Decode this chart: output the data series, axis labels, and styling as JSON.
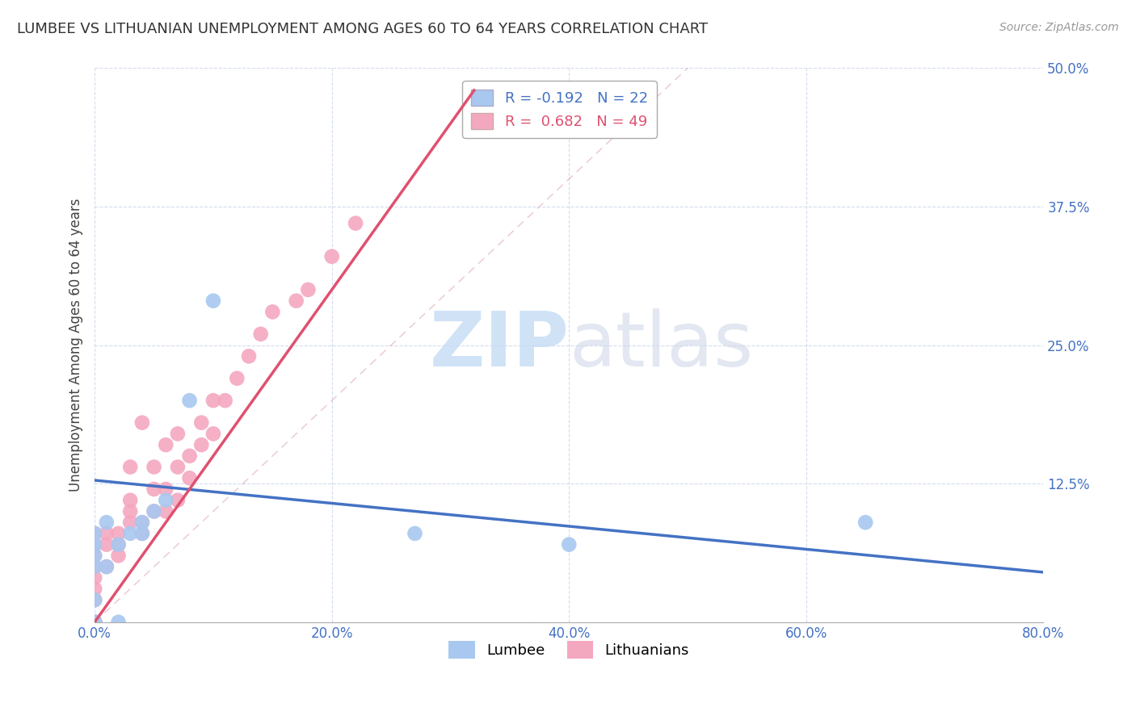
{
  "title": "LUMBEE VS LITHUANIAN UNEMPLOYMENT AMONG AGES 60 TO 64 YEARS CORRELATION CHART",
  "source": "Source: ZipAtlas.com",
  "ylabel": "Unemployment Among Ages 60 to 64 years",
  "xlim": [
    0.0,
    0.8
  ],
  "ylim": [
    0.0,
    0.5
  ],
  "xticks": [
    0.0,
    0.2,
    0.4,
    0.6,
    0.8
  ],
  "xtick_labels": [
    "0.0%",
    "20.0%",
    "40.0%",
    "60.0%",
    "80.0%"
  ],
  "yticks": [
    0.0,
    0.125,
    0.25,
    0.375,
    0.5
  ],
  "ytick_labels": [
    "",
    "12.5%",
    "25.0%",
    "37.5%",
    "50.0%"
  ],
  "lumbee_R": -0.192,
  "lumbee_N": 22,
  "lithuanian_R": 0.682,
  "lithuanian_N": 49,
  "lumbee_color": "#a8c8f0",
  "lithuanian_color": "#f4a8c0",
  "lumbee_line_color": "#4472c4",
  "lithuanian_line_color": "#e05070",
  "watermark_zip": "ZIP",
  "watermark_atlas": "atlas",
  "background_color": "#ffffff",
  "lumbee_scatter_x": [
    0.0,
    0.0,
    0.0,
    0.0,
    0.0,
    0.0,
    0.0,
    0.0,
    0.01,
    0.01,
    0.02,
    0.02,
    0.03,
    0.04,
    0.04,
    0.05,
    0.06,
    0.08,
    0.1,
    0.27,
    0.4,
    0.65
  ],
  "lumbee_scatter_y": [
    0.0,
    0.0,
    0.0,
    0.02,
    0.05,
    0.06,
    0.07,
    0.08,
    0.05,
    0.09,
    0.0,
    0.07,
    0.08,
    0.08,
    0.09,
    0.1,
    0.11,
    0.2,
    0.29,
    0.08,
    0.07,
    0.09
  ],
  "lithuanian_scatter_x": [
    0.0,
    0.0,
    0.0,
    0.0,
    0.0,
    0.0,
    0.0,
    0.0,
    0.0,
    0.0,
    0.0,
    0.01,
    0.01,
    0.01,
    0.02,
    0.02,
    0.02,
    0.03,
    0.03,
    0.03,
    0.03,
    0.04,
    0.04,
    0.04,
    0.05,
    0.05,
    0.05,
    0.06,
    0.06,
    0.06,
    0.07,
    0.07,
    0.07,
    0.08,
    0.08,
    0.09,
    0.09,
    0.1,
    0.1,
    0.11,
    0.12,
    0.13,
    0.14,
    0.15,
    0.17,
    0.18,
    0.2,
    0.22,
    0.32
  ],
  "lithuanian_scatter_y": [
    0.0,
    0.0,
    0.0,
    0.0,
    0.02,
    0.03,
    0.04,
    0.05,
    0.06,
    0.07,
    0.08,
    0.05,
    0.07,
    0.08,
    0.06,
    0.07,
    0.08,
    0.09,
    0.1,
    0.11,
    0.14,
    0.08,
    0.09,
    0.18,
    0.1,
    0.12,
    0.14,
    0.1,
    0.12,
    0.16,
    0.11,
    0.14,
    0.17,
    0.13,
    0.15,
    0.16,
    0.18,
    0.17,
    0.2,
    0.2,
    0.22,
    0.24,
    0.26,
    0.28,
    0.29,
    0.3,
    0.33,
    0.36,
    0.48
  ],
  "lumbee_line_x0": 0.0,
  "lumbee_line_y0": 0.128,
  "lumbee_line_x1": 0.8,
  "lumbee_line_y1": 0.045,
  "lithuanian_line_x0": 0.0,
  "lithuanian_line_y0": 0.0,
  "lithuanian_line_x1": 0.32,
  "lithuanian_line_y1": 0.48
}
